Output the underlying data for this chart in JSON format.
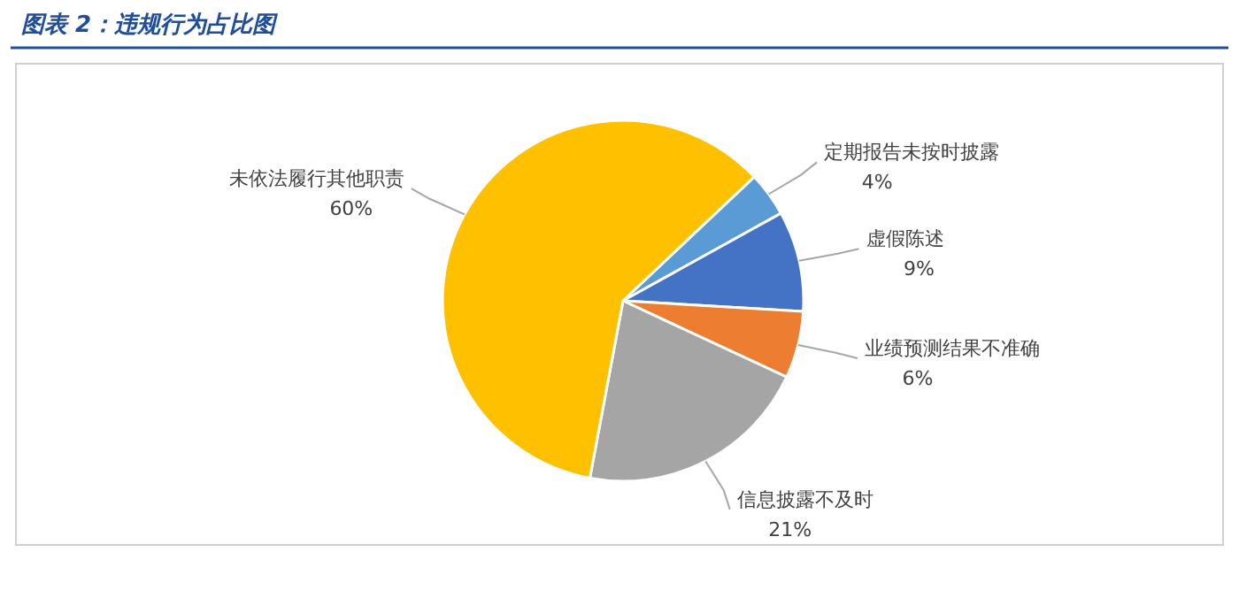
{
  "chart_data": {
    "type": "pie",
    "title": "图表 2：违规行为占比图",
    "categories": [
      "定期报告未按时披露",
      "虚假陈述",
      "业绩预测结果不准确",
      "信息披露不及时",
      "未依法履行其他职责"
    ],
    "values": [
      4,
      9,
      6,
      21,
      60
    ],
    "colors": [
      "#5b9bd5",
      "#4472c4",
      "#ed7d31",
      "#a5a5a5",
      "#ffc000"
    ],
    "value_labels": [
      "4%",
      "9%",
      "6%",
      "21%",
      "60%"
    ]
  }
}
